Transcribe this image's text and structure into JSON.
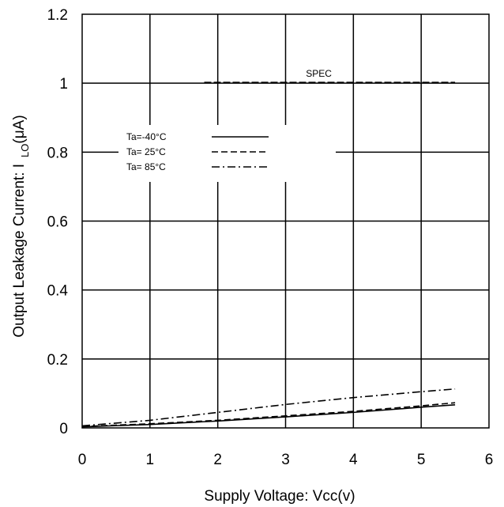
{
  "chart_data": {
    "type": "line",
    "title": "",
    "xlabel": "Supply Voltage: Vcc(v)",
    "ylabel_main": "Output Leakage Current: I",
    "ylabel_sub": "LO",
    "ylabel_unit": "(μA)",
    "xlim": [
      0,
      6
    ],
    "ylim": [
      0,
      1.2
    ],
    "x_ticks": [
      0,
      1,
      2,
      3,
      4,
      5,
      6
    ],
    "y_ticks": [
      0,
      0.2,
      0.4,
      0.6,
      0.8,
      1,
      1.2
    ],
    "x_tick_labels": [
      "0",
      "1",
      "2",
      "3",
      "4",
      "5",
      "6"
    ],
    "y_tick_labels": [
      "0",
      "0.2",
      "0.4",
      "0.6",
      "0.8",
      "1",
      "1.2"
    ],
    "grid": true,
    "legend": "upper-left",
    "spec": {
      "label": "SPEC",
      "value": 1.0,
      "x_range": [
        1.8,
        5.5
      ]
    },
    "series": [
      {
        "name": "Ta=-40°C",
        "style": "solid",
        "x": [
          0,
          1,
          2,
          3,
          4,
          5,
          5.5
        ],
        "y": [
          0.003,
          0.01,
          0.02,
          0.032,
          0.045,
          0.06,
          0.067
        ]
      },
      {
        "name": "Ta= 25°C",
        "style": "dashed",
        "x": [
          0,
          1,
          2,
          3,
          4,
          5,
          5.5
        ],
        "y": [
          0.004,
          0.012,
          0.022,
          0.035,
          0.048,
          0.064,
          0.073
        ]
      },
      {
        "name": "Ta= 85°C",
        "style": "dashdot",
        "x": [
          0,
          1,
          2,
          3,
          4,
          5,
          5.5
        ],
        "y": [
          0.006,
          0.022,
          0.045,
          0.068,
          0.088,
          0.105,
          0.113
        ]
      }
    ]
  }
}
